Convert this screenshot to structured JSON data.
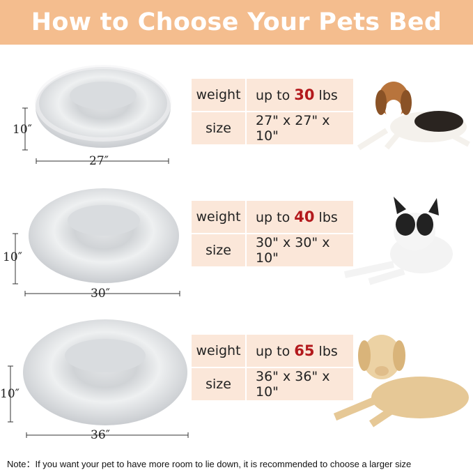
{
  "title": "How to Choose Your Pets Bed",
  "beds": [
    {
      "weight_label": "weight",
      "weight_prefix": "up to",
      "weight_value": "30",
      "weight_unit": "lbs",
      "size_label": "size",
      "size": "27\" x 27\" x 10\"",
      "width_dim": "27″",
      "height_dim": "10″",
      "dog": "beagle"
    },
    {
      "weight_label": "weight",
      "weight_prefix": "up to",
      "weight_value": "40",
      "weight_unit": "lbs",
      "size_label": "size",
      "size": "30\" x 30\" x 10\"",
      "width_dim": "30″",
      "height_dim": "10″",
      "dog": "french-bulldog"
    },
    {
      "weight_label": "weight",
      "weight_prefix": "up to",
      "weight_value": "65",
      "weight_unit": "lbs",
      "size_label": "size",
      "size": "36\" x 36\" x 10\"",
      "width_dim": "36″",
      "height_dim": "10″",
      "dog": "labrador"
    }
  ],
  "note": "Note：If you want your pet to have more room to lie down, it is recommended to choose a larger size",
  "colors": {
    "header": "#f4bd8e",
    "table": "#fbe7d9",
    "highlight": "#b3191c"
  }
}
